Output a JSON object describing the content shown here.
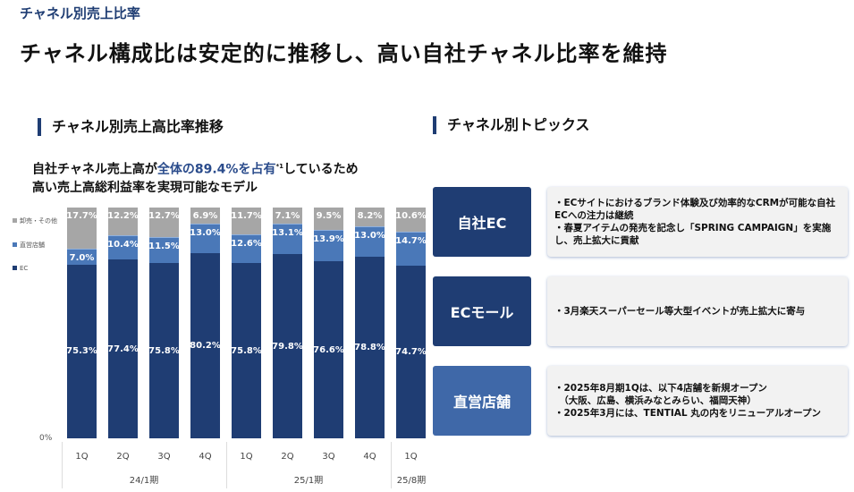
{
  "header": {
    "breadcrumb": "チャネル別売上比率",
    "title": "チャネル構成比は安定的に推移し、高い自社チャネル比率を維持"
  },
  "left": {
    "section_title": "チャネル別売上高比率推移",
    "lead_1a": "自社チャネル売上高が",
    "lead_1b": "全体の89.4%を占有",
    "lead_1c": "しているため",
    "lead_note": "*1",
    "lead_2": "高い売上高総利益率を実現可能なモデル"
  },
  "chart_data": {
    "type": "bar",
    "stacked": true,
    "categories": [
      "1Q",
      "2Q",
      "3Q",
      "4Q",
      "1Q",
      "2Q",
      "3Q",
      "4Q",
      "1Q"
    ],
    "periods": [
      {
        "label": "24/1期",
        "count": 4
      },
      {
        "label": "25/1期",
        "count": 4
      },
      {
        "label": "25/8期",
        "count": 1
      }
    ],
    "series": [
      {
        "name": "EC",
        "color": "#1f3d73",
        "values": [
          75.3,
          77.4,
          75.8,
          80.2,
          75.8,
          79.8,
          76.6,
          78.8,
          74.7
        ]
      },
      {
        "name": "直営店舗",
        "color": "#4a78b8",
        "values": [
          7.0,
          10.4,
          11.5,
          13.0,
          12.6,
          13.1,
          13.9,
          13.0,
          14.7
        ]
      },
      {
        "name": "卸売・その他",
        "color": "#a6a6a6",
        "values": [
          17.7,
          12.2,
          12.7,
          6.9,
          11.7,
          7.1,
          9.5,
          8.2,
          10.6
        ]
      }
    ],
    "ylim": [
      0,
      100
    ],
    "y_tick_label": "0%",
    "legend": "left"
  },
  "right": {
    "section_title": "チャネル別トピックス",
    "topics": [
      {
        "channel": "自社EC",
        "color": "#1f3d73",
        "text": "・ECサイトにおけるブランド体験及び効率的なCRMが可能な自社ECへの注力は継続\n・春夏アイテムの発売を記念し「SPRING CAMPAIGN」を実施し、売上拡大に貢献"
      },
      {
        "channel": "ECモール",
        "color": "#1f3d73",
        "text": "・3月楽天スーパーセール等大型イベントが売上拡大に寄与"
      },
      {
        "channel": "直営店舗",
        "color": "#3f68a8",
        "text": "・2025年8月期1Qは、以下4店舗を新規オープン\n　（大阪、広島、横浜みなとみらい、福岡天神）\n・2025年3月には、TENTIAL 丸の内をリニューアルオープン"
      }
    ]
  }
}
